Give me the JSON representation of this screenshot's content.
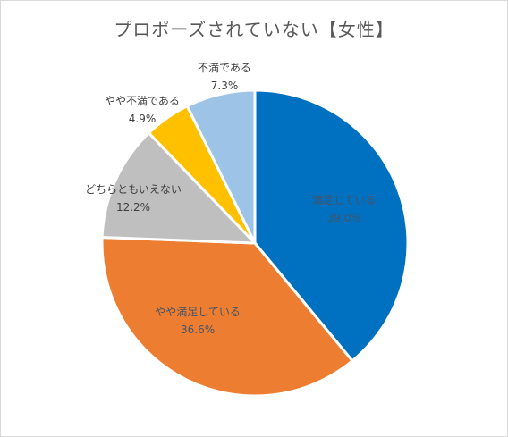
{
  "chart_data": {
    "type": "pie",
    "title": "プロポーズされていない【女性】",
    "slices": [
      {
        "label": "満足している",
        "value": 39.0,
        "value_label": "39.0%",
        "color": "#0070c0"
      },
      {
        "label": "やや満足している",
        "value": 36.6,
        "value_label": "36.6%",
        "color": "#ed7d31"
      },
      {
        "label": "どちらともいえない",
        "value": 12.2,
        "value_label": "12.2%",
        "color": "#bfbfbf"
      },
      {
        "label": "やや不満である",
        "value": 4.9,
        "value_label": "4.9%",
        "color": "#ffc000"
      },
      {
        "label": "不満である",
        "value": 7.3,
        "value_label": "7.3%",
        "color": "#9dc3e6"
      }
    ],
    "start_angle": "12 o'clock",
    "direction": "clockwise",
    "label_colors": {
      "inside": "#44546a",
      "outside": "#404040"
    }
  }
}
